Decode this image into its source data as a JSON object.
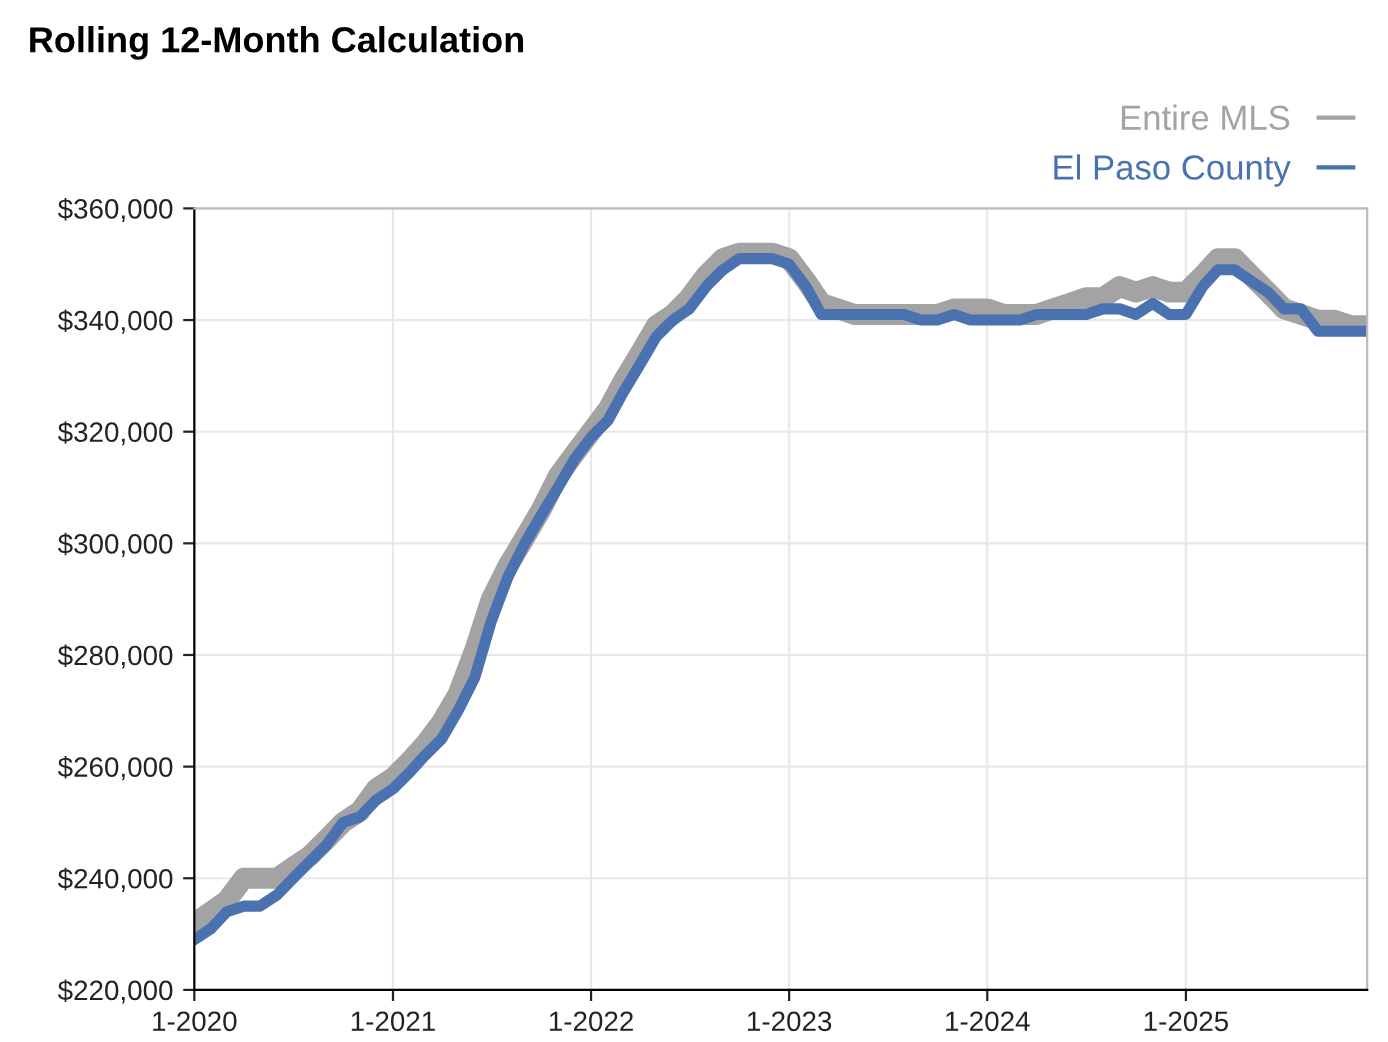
{
  "chart_data": {
    "type": "line",
    "title": "Rolling 12-Month Calculation",
    "x": [
      "2020-01",
      "2020-02",
      "2020-03",
      "2020-04",
      "2020-05",
      "2020-06",
      "2020-07",
      "2020-08",
      "2020-09",
      "2020-10",
      "2020-11",
      "2020-12",
      "2021-01",
      "2021-02",
      "2021-03",
      "2021-04",
      "2021-05",
      "2021-06",
      "2021-07",
      "2021-08",
      "2021-09",
      "2021-10",
      "2021-11",
      "2021-12",
      "2022-01",
      "2022-02",
      "2022-03",
      "2022-04",
      "2022-05",
      "2022-06",
      "2022-07",
      "2022-08",
      "2022-09",
      "2022-10",
      "2022-11",
      "2022-12",
      "2023-01",
      "2023-02",
      "2023-03",
      "2023-04",
      "2023-05",
      "2023-06",
      "2023-07",
      "2023-08",
      "2023-09",
      "2023-10",
      "2023-11",
      "2023-12",
      "2024-01",
      "2024-02",
      "2024-03",
      "2024-04",
      "2024-05",
      "2024-06",
      "2024-07",
      "2024-08",
      "2024-09",
      "2024-10",
      "2024-11",
      "2024-12",
      "2025-01",
      "2025-02",
      "2025-03",
      "2025-04",
      "2025-05",
      "2025-06",
      "2025-07",
      "2025-08",
      "2025-09",
      "2025-10",
      "2025-11",
      "2025-12"
    ],
    "series": [
      {
        "name": "Entire MLS",
        "color": "#a3a3a3",
        "values": [
          232000,
          234000,
          236000,
          240000,
          240000,
          240000,
          242000,
          244000,
          247000,
          250000,
          252000,
          256000,
          258000,
          261000,
          264000,
          268000,
          273000,
          281000,
          290000,
          296000,
          301000,
          306000,
          312000,
          316000,
          320000,
          324000,
          329000,
          334000,
          339000,
          341000,
          344000,
          348000,
          351000,
          352000,
          352000,
          352000,
          351000,
          347000,
          343000,
          342000,
          341000,
          341000,
          341000,
          341000,
          341000,
          341000,
          342000,
          342000,
          342000,
          341000,
          341000,
          341000,
          342000,
          343000,
          344000,
          344000,
          346000,
          345000,
          346000,
          345000,
          345000,
          348000,
          351000,
          351000,
          348000,
          345000,
          342000,
          341000,
          340000,
          340000,
          339000,
          339000
        ]
      },
      {
        "name": "El Paso County",
        "color": "#4a72b0",
        "values": [
          229000,
          231000,
          234000,
          235000,
          235000,
          237000,
          240000,
          243000,
          246000,
          250000,
          251000,
          254000,
          256000,
          259000,
          262000,
          265000,
          270000,
          276000,
          286000,
          294000,
          300000,
          305000,
          310000,
          315000,
          319000,
          322000,
          327000,
          332000,
          337000,
          340000,
          342000,
          346000,
          349000,
          351000,
          351000,
          351000,
          350000,
          346000,
          341000,
          341000,
          341000,
          341000,
          341000,
          341000,
          340000,
          340000,
          341000,
          340000,
          340000,
          340000,
          340000,
          341000,
          341000,
          341000,
          341000,
          342000,
          342000,
          341000,
          343000,
          341000,
          341000,
          346000,
          349000,
          349000,
          347000,
          345000,
          342000,
          342000,
          338000,
          338000,
          338000,
          338000
        ]
      }
    ],
    "xlim": [
      "2020-01",
      "2025-12"
    ],
    "xticks": [
      {
        "value": "2020-01",
        "label": "1-2020"
      },
      {
        "value": "2021-01",
        "label": "1-2021"
      },
      {
        "value": "2022-01",
        "label": "1-2022"
      },
      {
        "value": "2023-01",
        "label": "1-2023"
      },
      {
        "value": "2024-01",
        "label": "1-2024"
      },
      {
        "value": "2025-01",
        "label": "1-2025"
      }
    ],
    "ylim": [
      220000,
      360000
    ],
    "yticks": [
      {
        "value": 220000,
        "label": "$220,000"
      },
      {
        "value": 240000,
        "label": "$240,000"
      },
      {
        "value": 260000,
        "label": "$260,000"
      },
      {
        "value": 280000,
        "label": "$280,000"
      },
      {
        "value": 300000,
        "label": "$300,000"
      },
      {
        "value": 320000,
        "label": "$320,000"
      },
      {
        "value": 340000,
        "label": "$340,000"
      },
      {
        "value": 360000,
        "label": "$360,000"
      }
    ],
    "grid": true,
    "legend": "top right",
    "marker": "none",
    "line_style": "solid"
  }
}
